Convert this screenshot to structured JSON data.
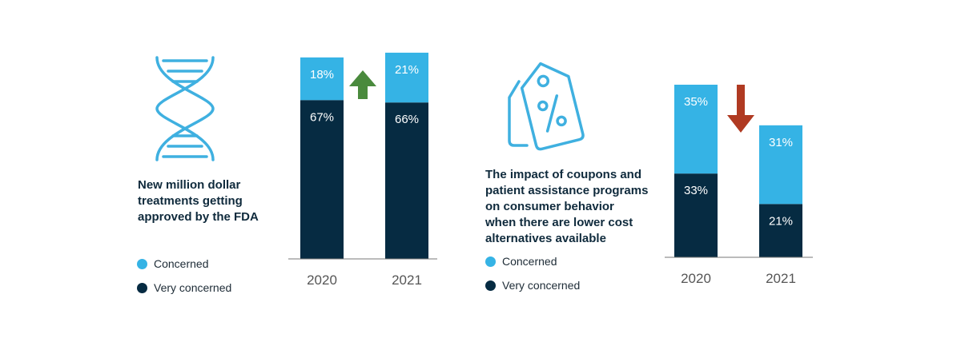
{
  "colors": {
    "concerned": "#35b3e5",
    "very_concerned": "#062b42",
    "up_arrow": "#4a8a3d",
    "down_arrow": "#b03a22",
    "icon": "#3fb0e0",
    "axis": "#777777",
    "tick": "#555555"
  },
  "legend": {
    "concerned": "Concerned",
    "very_concerned": "Very concerned"
  },
  "panels": [
    {
      "title": "New million dollar\ntreatments getting\napproved by the FDA",
      "icon": "dna-icon",
      "trend": "up"
    },
    {
      "title": "The impact of coupons and\npatient assistance programs\non consumer behavior\nwhen there are lower cost\nalternatives available",
      "icon": "discount-tag-icon",
      "trend": "down"
    }
  ],
  "chart_data": [
    {
      "type": "bar",
      "stacked": true,
      "categories": [
        "2020",
        "2021"
      ],
      "series": [
        {
          "name": "Very concerned",
          "values": [
            67,
            66
          ]
        },
        {
          "name": "Concerned",
          "values": [
            18,
            21
          ]
        }
      ],
      "value_labels": {
        "Very concerned": [
          "67%",
          "66%"
        ],
        "Concerned": [
          "18%",
          "21%"
        ]
      },
      "ylim": [
        0,
        89
      ]
    },
    {
      "type": "bar",
      "stacked": true,
      "categories": [
        "2020",
        "2021"
      ],
      "series": [
        {
          "name": "Very concerned",
          "values": [
            33,
            21
          ]
        },
        {
          "name": "Concerned",
          "values": [
            35,
            31
          ]
        }
      ],
      "value_labels": {
        "Very concerned": [
          "33%",
          "21%"
        ],
        "Concerned": [
          "35%",
          "31%"
        ]
      },
      "ylim": [
        0,
        68
      ]
    }
  ]
}
